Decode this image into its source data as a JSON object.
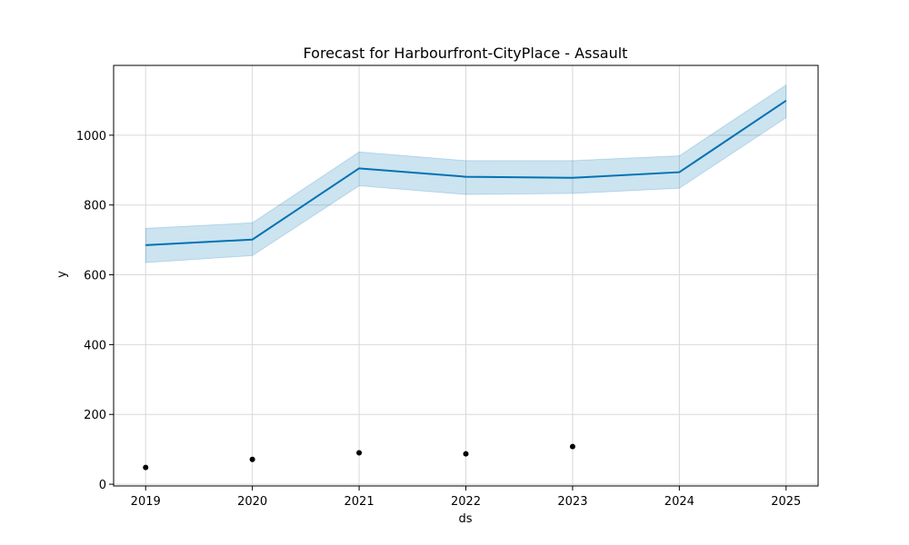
{
  "chart_data": {
    "type": "line",
    "title": "Forecast for Harbourfront-CityPlace - Assault",
    "xlabel": "ds",
    "ylabel": "y",
    "x_ticks": [
      "2019",
      "2020",
      "2021",
      "2022",
      "2023",
      "2024",
      "2025"
    ],
    "y_ticks": [
      "0",
      "200",
      "400",
      "600",
      "800",
      "1000"
    ],
    "xlim": [
      2018.7,
      2025.3
    ],
    "ylim": [
      -5,
      1200
    ],
    "grid": true,
    "forecast": {
      "x": [
        2019,
        2020,
        2021,
        2022,
        2023,
        2024,
        2025
      ],
      "yhat": [
        685,
        701,
        905,
        881,
        878,
        894,
        1099
      ],
      "yhat_lower": [
        635,
        655,
        855,
        830,
        833,
        848,
        1050
      ],
      "yhat_upper": [
        733,
        749,
        952,
        927,
        927,
        941,
        1144
      ],
      "line_color": "#0072B2",
      "band_color": "#0072B2"
    },
    "observed": {
      "x": [
        2019,
        2020,
        2021,
        2022,
        2023
      ],
      "y": [
        48,
        71,
        90,
        87,
        108
      ],
      "color": "#000000"
    }
  }
}
